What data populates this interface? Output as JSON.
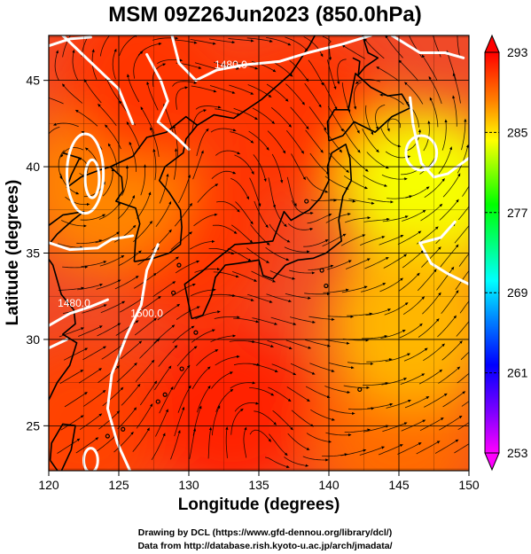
{
  "chart_data": {
    "type": "heatmap",
    "title": "MSM 09Z26Jun2023 (850.0hPa)",
    "xlabel": "Longitude (degrees)",
    "ylabel": "Latitude  (degrees)",
    "xlim": [
      120,
      150
    ],
    "ylim": [
      22.4,
      47.6
    ],
    "x_ticks": [
      120,
      125,
      130,
      135,
      140,
      145,
      150
    ],
    "x_tick_labels": [
      "120",
      "125",
      "130",
      "135",
      "140",
      "145",
      "150"
    ],
    "y_ticks": [
      25,
      30,
      35,
      40,
      45
    ],
    "y_tick_labels": [
      "25",
      "30",
      "35",
      "40",
      "45"
    ],
    "grid": true,
    "colorbar": {
      "min": 253,
      "max": 293,
      "ticks": [
        293,
        285,
        277,
        269,
        261,
        253
      ],
      "tick_labels": [
        "293",
        "285",
        "277",
        "269",
        "261",
        "253"
      ],
      "colors": [
        "#ff00ff",
        "#8000ff",
        "#0000ff",
        "#0080ff",
        "#00ffff",
        "#00ff80",
        "#00ff00",
        "#80ff00",
        "#ffff00",
        "#ff8000",
        "#ff0000"
      ]
    },
    "contour_labels": [
      {
        "text": "1480.0",
        "lon": 133.0,
        "lat": 45.7
      },
      {
        "text": "1480.0",
        "lon": 121.8,
        "lat": 31.9
      },
      {
        "text": "1500.0",
        "lon": 127.0,
        "lat": 31.3
      }
    ],
    "temperature_field": [
      {
        "lon": 122.5,
        "lat": 25.0,
        "value": 290.5
      },
      {
        "lon": 133.0,
        "lat": 26.0,
        "value": 291.8
      },
      {
        "lon": 145.0,
        "lat": 24.5,
        "value": 289.0
      },
      {
        "lon": 130.0,
        "lat": 36.0,
        "value": 291.0
      },
      {
        "lon": 124.0,
        "lat": 39.0,
        "value": 288.0
      },
      {
        "lon": 138.0,
        "lat": 43.0,
        "value": 291.0
      },
      {
        "lon": 147.0,
        "lat": 38.5,
        "value": 284.0
      },
      {
        "lon": 146.0,
        "lat": 31.0,
        "value": 286.5
      },
      {
        "lon": 127.0,
        "lat": 45.0,
        "value": 291.0
      }
    ]
  },
  "credits": {
    "line1": "Drawing by DCL (https://www.gfd-dennou.org/library/dcl/)",
    "line2": "Data from http://database.rish.kyoto-u.ac.jp/arch/jmadata/"
  }
}
